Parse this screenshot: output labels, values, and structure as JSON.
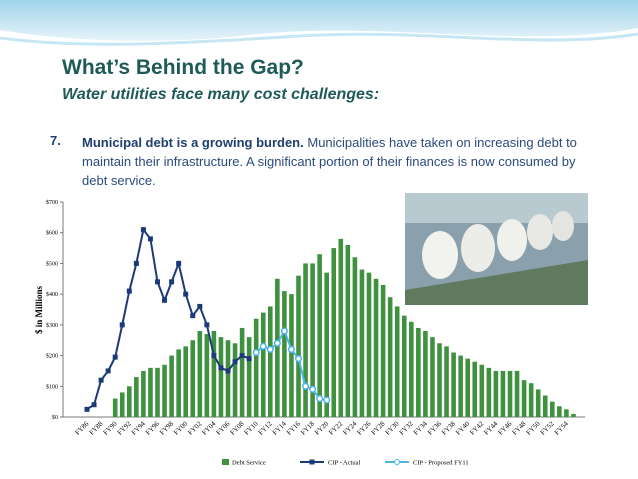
{
  "slide": {
    "title": "What’s Behind the Gap?",
    "subtitle": "Water utilities face many cost challenges:",
    "item_number": "7.",
    "item_lead": "Municipal debt is a growing burden.",
    "item_text": "Municipalities have taken on increasing debt to maintain their infrastructure.  A  significant portion of their finances is now consumed by debt service."
  },
  "chart_data": {
    "type": "bar_line",
    "ylabel": "$ in Millions",
    "ylim": [
      0,
      700
    ],
    "yticks": [
      {
        "value": 0,
        "label": "$0"
      },
      {
        "value": 100,
        "label": "$100"
      },
      {
        "value": 200,
        "label": "$200"
      },
      {
        "value": 300,
        "label": "$300"
      },
      {
        "value": 400,
        "label": "$400"
      },
      {
        "value": 500,
        "label": "$500"
      },
      {
        "value": 600,
        "label": "$600"
      },
      {
        "value": 700,
        "label": "$700"
      }
    ],
    "categories": [
      "FY86",
      null,
      "FY88",
      null,
      "FY90",
      null,
      "FY92",
      null,
      "FY94",
      null,
      "FY96",
      null,
      "FY98",
      null,
      "FY00",
      null,
      "FY02",
      null,
      "FY04",
      null,
      "FY06",
      null,
      "FY08",
      null,
      "FY10",
      null,
      "FY12",
      null,
      "FY14",
      null,
      "FY16",
      null,
      "FY18",
      null,
      "FY20",
      null,
      "FY22",
      null,
      "FY24",
      null,
      "FY26",
      null,
      "FY28",
      null,
      "FY30",
      null,
      "FY32",
      null,
      "FY34",
      null,
      "FY36",
      null,
      "FY38",
      null,
      "FY40",
      null,
      "FY42",
      null,
      "FY44",
      null,
      "FY46",
      null,
      "FY48",
      null,
      "FY50",
      null,
      "FY52",
      null,
      "FY54",
      null
    ],
    "series": [
      {
        "name": "Debt Service",
        "kind": "bar",
        "color": "#3f9140",
        "values": [
          null,
          null,
          null,
          null,
          60,
          80,
          100,
          130,
          150,
          160,
          160,
          170,
          200,
          220,
          230,
          250,
          280,
          270,
          280,
          260,
          250,
          240,
          290,
          260,
          320,
          340,
          360,
          450,
          410,
          400,
          460,
          500,
          500,
          530,
          470,
          550,
          580,
          560,
          520,
          480,
          470,
          450,
          430,
          390,
          360,
          330,
          310,
          290,
          280,
          260,
          240,
          230,
          210,
          200,
          190,
          180,
          170,
          160,
          150,
          150,
          150,
          150,
          120,
          110,
          90,
          70,
          50,
          35,
          25,
          10
        ]
      },
      {
        "name": "CIP - Actual",
        "kind": "line",
        "color": "#1d3a78",
        "values": [
          25,
          40,
          120,
          150,
          195,
          300,
          410,
          500,
          610,
          580,
          440,
          380,
          440,
          500,
          400,
          330,
          360,
          300,
          200,
          160,
          150,
          180,
          200,
          190,
          null,
          null,
          null,
          null,
          null,
          null,
          null,
          null,
          null,
          null,
          null,
          null,
          null,
          null,
          null,
          null,
          null,
          null,
          null,
          null,
          null,
          null,
          null,
          null,
          null,
          null,
          null,
          null,
          null,
          null,
          null,
          null,
          null,
          null,
          null,
          null,
          null,
          null,
          null,
          null,
          null,
          null,
          null,
          null,
          null,
          null
        ]
      },
      {
        "name": "CIP - Proposed FY11",
        "kind": "line",
        "color": "#4db3e6",
        "values": [
          null,
          null,
          null,
          null,
          null,
          null,
          null,
          null,
          null,
          null,
          null,
          null,
          null,
          null,
          null,
          null,
          null,
          null,
          null,
          null,
          null,
          null,
          null,
          null,
          210,
          230,
          220,
          240,
          280,
          220,
          190,
          100,
          90,
          60,
          55,
          null,
          null,
          null,
          null,
          null,
          null,
          null,
          null,
          null,
          null,
          null,
          null,
          null,
          null,
          null,
          null,
          null,
          null,
          null,
          null,
          null,
          null,
          null,
          null,
          null,
          null,
          null,
          null,
          null,
          null,
          null,
          null,
          null,
          null,
          null
        ]
      }
    ]
  }
}
